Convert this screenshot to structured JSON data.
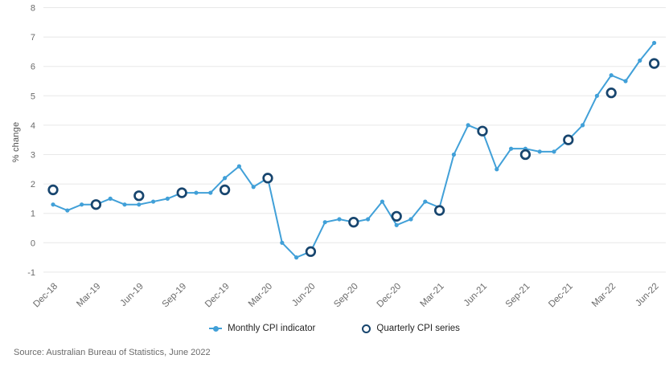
{
  "chart_data": {
    "type": "line",
    "title": "",
    "ylabel": "% change",
    "ylim": [
      -1,
      8
    ],
    "yticks": [
      8,
      7,
      6,
      5,
      4,
      3,
      2,
      1,
      0,
      -1
    ],
    "grid": "horizontal",
    "legend_position": "bottom-center",
    "x_tick_every": 3,
    "x_tick_labels": [
      "Dec-18",
      "Mar-19",
      "Jun-19",
      "Sep-19",
      "Dec-19",
      "Mar-20",
      "Jun-20",
      "Sep-20",
      "Dec-20",
      "Mar-21",
      "Jun-21",
      "Sep-21",
      "Dec-21",
      "Mar-22",
      "Jun-22"
    ],
    "months": [
      "Dec-18",
      "Jan-19",
      "Feb-19",
      "Mar-19",
      "Apr-19",
      "May-19",
      "Jun-19",
      "Jul-19",
      "Aug-19",
      "Sep-19",
      "Oct-19",
      "Nov-19",
      "Dec-19",
      "Jan-20",
      "Feb-20",
      "Mar-20",
      "Apr-20",
      "May-20",
      "Jun-20",
      "Jul-20",
      "Aug-20",
      "Sep-20",
      "Oct-20",
      "Nov-20",
      "Dec-20",
      "Jan-21",
      "Feb-21",
      "Mar-21",
      "Apr-21",
      "May-21",
      "Jun-21",
      "Jul-21",
      "Aug-21",
      "Sep-21",
      "Oct-21",
      "Nov-21",
      "Dec-21",
      "Jan-22",
      "Feb-22",
      "Mar-22",
      "Apr-22",
      "May-22",
      "Jun-22"
    ],
    "series": [
      {
        "name": "Monthly CPI indicator",
        "style": "line-with-dots",
        "color": "#41a0d8",
        "x_step": 1,
        "values": [
          1.3,
          1.1,
          1.3,
          1.3,
          1.5,
          1.3,
          1.3,
          1.4,
          1.5,
          1.7,
          1.7,
          1.7,
          2.2,
          2.6,
          1.9,
          2.2,
          0.0,
          -0.5,
          -0.3,
          0.7,
          0.8,
          0.7,
          0.8,
          1.4,
          0.6,
          0.8,
          1.4,
          1.2,
          3.0,
          4.0,
          3.8,
          2.5,
          3.2,
          3.2,
          3.1,
          3.1,
          3.5,
          4.0,
          5.0,
          5.7,
          5.5,
          6.2,
          6.8
        ]
      },
      {
        "name": "Quarterly CPI series",
        "style": "open-rings",
        "color": "#17456e",
        "x_step": 3,
        "values": [
          1.8,
          1.3,
          1.6,
          1.7,
          1.8,
          2.2,
          -0.3,
          0.7,
          0.9,
          1.1,
          3.8,
          3.0,
          3.5,
          5.1,
          6.1
        ]
      }
    ]
  },
  "legend": {
    "monthly_label": "Monthly CPI indicator",
    "quarterly_label": "Quarterly CPI series"
  },
  "source_note": "Source: Australian Bureau of Statistics, June 2022",
  "colors": {
    "monthly_line": "#41a0d8",
    "quarterly_ring": "#17456e",
    "grid": "#e8e8e8",
    "tick_text": "#6b6b6b",
    "legend_text": "#252525",
    "source_text": "#6b6b6b"
  }
}
